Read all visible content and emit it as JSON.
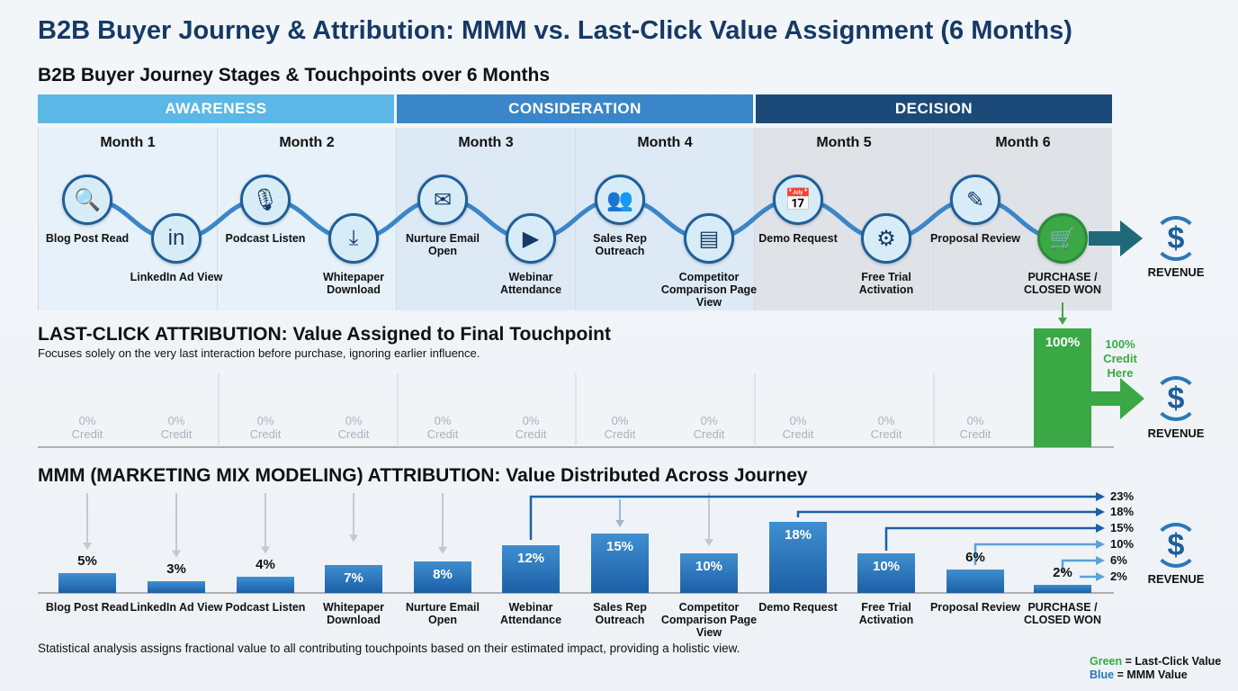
{
  "title": "B2B Buyer Journey & Attribution: MMM vs. Last-Click Value Assignment (6 Months)",
  "journey": {
    "subtitle": "B2B Buyer Journey Stages & Touchpoints over 6 Months",
    "stages": [
      {
        "label": "AWARENESS",
        "color": "#5bb8e6"
      },
      {
        "label": "CONSIDERATION",
        "color": "#3a86c8"
      },
      {
        "label": "DECISION",
        "color": "#1b4a78"
      }
    ],
    "months": [
      "Month 1",
      "Month 2",
      "Month 3",
      "Month 4",
      "Month 5",
      "Month 6"
    ],
    "touchpoints": [
      {
        "label": "Blog Post Read",
        "icon": "document-search-icon",
        "glyph": "🔍"
      },
      {
        "label": "LinkedIn Ad View",
        "icon": "linkedin-icon",
        "glyph": "in"
      },
      {
        "label": "Podcast Listen",
        "icon": "microphone-icon",
        "glyph": "🎙"
      },
      {
        "label": "Whitepaper Download",
        "icon": "download-document-icon",
        "glyph": "⤓"
      },
      {
        "label": "Nurture Email Open",
        "icon": "email-icon",
        "glyph": "✉"
      },
      {
        "label": "Webinar Attendance",
        "icon": "video-play-icon",
        "glyph": "▶"
      },
      {
        "label": "Sales Rep Outreach",
        "icon": "people-icon",
        "glyph": "👥"
      },
      {
        "label": "Competitor Comparison Page View",
        "icon": "comparison-page-icon",
        "glyph": "▤"
      },
      {
        "label": "Demo Request",
        "icon": "calendar-icon",
        "glyph": "📅"
      },
      {
        "label": "Free Trial Activation",
        "icon": "gears-icon",
        "glyph": "⚙"
      },
      {
        "label": "Proposal Review",
        "icon": "contract-icon",
        "glyph": "✎"
      },
      {
        "label": "PURCHASE / CLOSED WON",
        "icon": "cart-check-icon",
        "glyph": "🛒"
      }
    ],
    "revenue_label": "REVENUE"
  },
  "last_click": {
    "heading": "LAST-CLICK ATTRIBUTION: Value Assigned to Final Touchpoint",
    "description": "Focuses solely on the very last interaction before purchase, ignoring earlier influence.",
    "zero_credits": [
      "0%",
      "0%",
      "0%",
      "0%",
      "0%",
      "0%",
      "0%",
      "0%",
      "0%",
      "0%",
      "0%"
    ],
    "credit_word": "Credit",
    "final_value": "100%",
    "callout": "100% Credit Here",
    "color": "#3aa845",
    "revenue_label": "REVENUE"
  },
  "mmm": {
    "heading": "MMM (MARKETING MIX MODELING) ATTRIBUTION: Value Distributed Across Journey",
    "footer": "Statistical analysis assigns fractional value to all contributing touchpoints based on their estimated impact, providing a holistic view.",
    "right_labels": [
      "23%",
      "18%",
      "15%",
      "10%",
      "6%",
      "2%"
    ],
    "revenue_label": "REVENUE",
    "color": "#2a78bb"
  },
  "chart_data": {
    "type": "bar",
    "categories": [
      "Blog Post Read",
      "LinkedIn Ad View",
      "Podcast Listen",
      "Whitepaper Download",
      "Nurture Email Open",
      "Webinar Attendance",
      "Sales Rep Outreach",
      "Competitor Comparison Page View",
      "Demo Request",
      "Free Trial Activation",
      "Proposal Review",
      "PURCHASE / CLOSED WON"
    ],
    "values": [
      5,
      3,
      4,
      7,
      8,
      12,
      15,
      10,
      18,
      10,
      6,
      2
    ],
    "value_labels": [
      "5%",
      "3%",
      "4%",
      "7%",
      "8%",
      "12%",
      "15%",
      "10%",
      "18%",
      "10%",
      "6%",
      "2%"
    ]
  },
  "legend": {
    "green_word": "Green",
    "green_text": " = Last-Click Value",
    "blue_word": "Blue",
    "blue_text": " = MMM Value",
    "green": "#3aa845",
    "blue": "#2a78bb"
  }
}
